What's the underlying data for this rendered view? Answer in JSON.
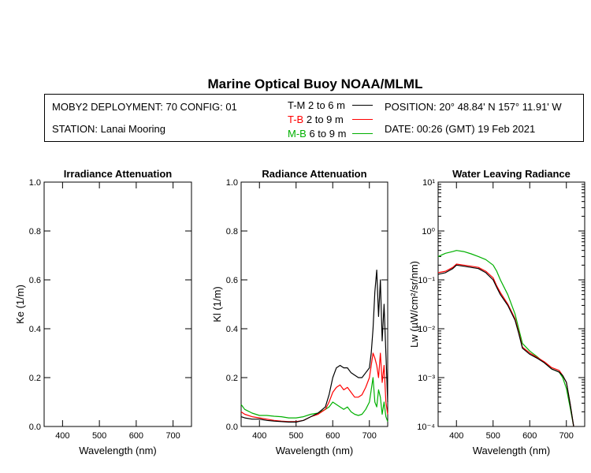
{
  "title": "Marine Optical Buoy NOAA/MLML",
  "info": {
    "deployment": "MOBY2 DEPLOYMENT: 70 CONFIG: 01",
    "station": "STATION: Lanai Mooring",
    "position": "POSITION: 20° 48.84' N   157° 11.91' W",
    "date": "DATE: 00:26 (GMT) 19 Feb 2021"
  },
  "legend": [
    {
      "code": "T-M",
      "range": "2 to 6  m",
      "color": "#000000"
    },
    {
      "code": "T-B",
      "range": "2 to 9  m",
      "color": "#ff0000"
    },
    {
      "code": "M-B",
      "range": "6 to 9  m",
      "color": "#00b000"
    }
  ],
  "chart_data": [
    {
      "type": "line",
      "title": "Irradiance Attenuation",
      "xlabel": "Wavelength (nm)",
      "ylabel": "Ke  (1/m)",
      "xlim": [
        350,
        750
      ],
      "ylim": [
        0,
        1
      ],
      "xticks": [
        "400",
        "500",
        "600",
        "700"
      ],
      "yticks": [
        "0.0",
        "0.2",
        "0.4",
        "0.6",
        "0.8",
        "1.0"
      ],
      "series": []
    },
    {
      "type": "line",
      "title": "Radiance Attenuation",
      "xlabel": "Wavelength (nm)",
      "ylabel": "Kl  (1/m)",
      "xlim": [
        350,
        750
      ],
      "ylim": [
        0,
        1
      ],
      "xticks": [
        "400",
        "500",
        "600",
        "700"
      ],
      "yticks": [
        "0.0",
        "0.2",
        "0.4",
        "0.6",
        "0.8",
        "1.0"
      ],
      "series": [
        {
          "name": "T-M",
          "color": "#000000",
          "x": [
            350,
            360,
            380,
            400,
            420,
            440,
            460,
            480,
            500,
            520,
            540,
            560,
            580,
            590,
            600,
            610,
            620,
            630,
            640,
            650,
            660,
            670,
            680,
            690,
            700,
            705,
            710,
            715,
            720,
            725,
            730,
            735,
            740,
            745,
            750
          ],
          "y": [
            0.04,
            0.035,
            0.03,
            0.03,
            0.025,
            0.022,
            0.02,
            0.018,
            0.018,
            0.025,
            0.04,
            0.055,
            0.08,
            0.13,
            0.2,
            0.24,
            0.25,
            0.24,
            0.24,
            0.22,
            0.21,
            0.2,
            0.2,
            0.22,
            0.24,
            0.3,
            0.4,
            0.55,
            0.64,
            0.45,
            0.6,
            0.35,
            0.5,
            0.3,
            0.1
          ]
        },
        {
          "name": "T-B",
          "color": "#ff0000",
          "x": [
            350,
            360,
            380,
            400,
            420,
            440,
            460,
            480,
            500,
            520,
            540,
            560,
            580,
            590,
            600,
            610,
            620,
            630,
            640,
            650,
            660,
            670,
            680,
            690,
            700,
            705,
            710,
            715,
            720,
            725,
            730,
            735,
            740,
            745,
            750
          ],
          "y": [
            0.06,
            0.05,
            0.04,
            0.035,
            0.03,
            0.025,
            0.022,
            0.02,
            0.02,
            0.025,
            0.04,
            0.05,
            0.07,
            0.1,
            0.14,
            0.16,
            0.17,
            0.15,
            0.16,
            0.14,
            0.12,
            0.12,
            0.13,
            0.16,
            0.2,
            0.25,
            0.3,
            0.28,
            0.25,
            0.2,
            0.3,
            0.18,
            0.25,
            0.1,
            0.05
          ]
        },
        {
          "name": "M-B",
          "color": "#00b000",
          "x": [
            350,
            360,
            380,
            400,
            420,
            440,
            460,
            480,
            500,
            520,
            540,
            560,
            580,
            590,
            600,
            610,
            620,
            630,
            640,
            650,
            660,
            670,
            680,
            690,
            700,
            705,
            710,
            715,
            720,
            725,
            730,
            735,
            740,
            745,
            750
          ],
          "y": [
            0.09,
            0.07,
            0.055,
            0.045,
            0.045,
            0.042,
            0.04,
            0.035,
            0.035,
            0.04,
            0.05,
            0.055,
            0.07,
            0.08,
            0.1,
            0.09,
            0.08,
            0.07,
            0.08,
            0.06,
            0.05,
            0.045,
            0.05,
            0.07,
            0.1,
            0.15,
            0.2,
            0.1,
            0.08,
            0.15,
            0.12,
            0.05,
            0.1,
            0.04,
            0.02
          ]
        }
      ]
    },
    {
      "type": "line",
      "title": "Water Leaving Radiance",
      "xlabel": "Wavelength (nm)",
      "ylabel": "Lw  (µW/cm²/sr/nm)",
      "xlim": [
        350,
        750
      ],
      "ylim": [
        0.0001,
        10
      ],
      "log_y": true,
      "xticks": [
        "400",
        "500",
        "600",
        "700"
      ],
      "yticks": [
        "10¹",
        "10⁰",
        "10⁻¹",
        "10⁻²",
        "10⁻³",
        "10⁻⁴"
      ],
      "series": [
        {
          "name": "T-M",
          "color": "#000000",
          "x": [
            350,
            370,
            390,
            400,
            420,
            440,
            460,
            480,
            500,
            510,
            520,
            540,
            560,
            570,
            580,
            600,
            620,
            640,
            660,
            670,
            680,
            690,
            700,
            710,
            720
          ],
          "y": [
            0.13,
            0.14,
            0.17,
            0.2,
            0.19,
            0.18,
            0.17,
            0.14,
            0.1,
            0.07,
            0.05,
            0.03,
            0.015,
            0.008,
            0.004,
            0.003,
            0.0025,
            0.002,
            0.0015,
            0.0014,
            0.0013,
            0.0011,
            0.0008,
            0.0003,
            0.0001
          ]
        },
        {
          "name": "T-B",
          "color": "#ff0000",
          "x": [
            350,
            370,
            390,
            400,
            420,
            440,
            460,
            480,
            500,
            510,
            520,
            540,
            560,
            570,
            580,
            600,
            620,
            640,
            660,
            670,
            680,
            690,
            700,
            710,
            720
          ],
          "y": [
            0.14,
            0.15,
            0.18,
            0.21,
            0.2,
            0.19,
            0.18,
            0.15,
            0.11,
            0.075,
            0.055,
            0.032,
            0.016,
            0.0085,
            0.0042,
            0.0032,
            0.0026,
            0.0021,
            0.0016,
            0.0015,
            0.0014,
            0.0011,
            0.0008,
            0.0003,
            0.0001
          ]
        },
        {
          "name": "M-B",
          "color": "#00b000",
          "x": [
            350,
            370,
            390,
            400,
            420,
            440,
            460,
            480,
            500,
            510,
            520,
            540,
            560,
            570,
            580,
            600,
            620,
            640,
            660,
            670,
            680,
            690,
            700,
            710,
            720
          ],
          "y": [
            0.3,
            0.35,
            0.38,
            0.4,
            0.38,
            0.34,
            0.3,
            0.26,
            0.2,
            0.15,
            0.1,
            0.05,
            0.02,
            0.01,
            0.005,
            0.0035,
            0.0027,
            0.002,
            0.0015,
            0.0014,
            0.0013,
            0.001,
            0.0006,
            0.00025,
            0.0001
          ]
        }
      ]
    }
  ]
}
